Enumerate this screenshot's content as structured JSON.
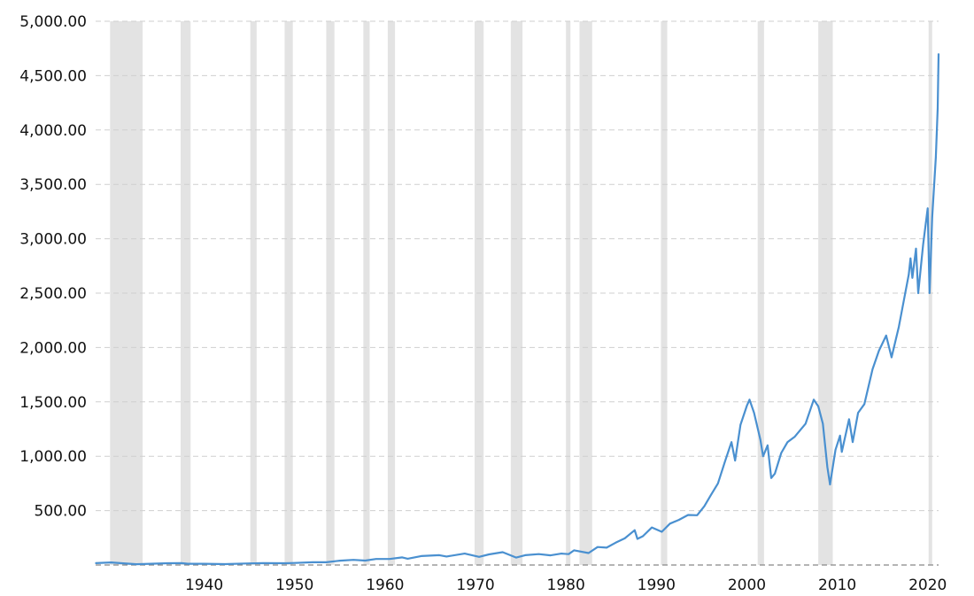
{
  "chart_data": {
    "type": "line",
    "title": "",
    "xlabel": "",
    "ylabel": "",
    "xlim": [
      1928,
      2021.2
    ],
    "ylim": [
      0,
      5000
    ],
    "grid": true,
    "y_ticks": [
      500,
      1000,
      1500,
      2000,
      2500,
      3000,
      3500,
      4000,
      4500,
      5000
    ],
    "y_tick_labels": [
      "500.00",
      "1,000.00",
      "1,500.00",
      "2,000.00",
      "2,500.00",
      "3,000.00",
      "3,500.00",
      "4,000.00",
      "4,500.00",
      "5,000.00"
    ],
    "x_ticks": [
      1940,
      1950,
      1960,
      1970,
      1980,
      1990,
      2000,
      2010,
      2020
    ],
    "x_tick_labels": [
      "1940",
      "1950",
      "1960",
      "1970",
      "1980",
      "1990",
      "2000",
      "2010",
      "2020"
    ],
    "line_color": "#4a90d0",
    "recession_color": "#e3e3e3",
    "recession_periods": [
      [
        1929.6,
        1933.2
      ],
      [
        1937.4,
        1938.5
      ],
      [
        1945.1,
        1945.8
      ],
      [
        1948.9,
        1949.8
      ],
      [
        1953.5,
        1954.4
      ],
      [
        1957.6,
        1958.3
      ],
      [
        1960.3,
        1961.1
      ],
      [
        1969.9,
        1970.9
      ],
      [
        1973.9,
        1975.2
      ],
      [
        1980.0,
        1980.5
      ],
      [
        1981.5,
        1982.9
      ],
      [
        1990.5,
        1991.2
      ],
      [
        2001.2,
        2001.9
      ],
      [
        2007.9,
        2009.5
      ],
      [
        2020.1,
        2020.4
      ]
    ],
    "series": [
      {
        "name": "",
        "points": [
          [
            1928.0,
            17
          ],
          [
            1929.7,
            24
          ],
          [
            1932.5,
            7
          ],
          [
            1936.0,
            16
          ],
          [
            1937.5,
            17
          ],
          [
            1938.2,
            11
          ],
          [
            1940.0,
            11
          ],
          [
            1942.3,
            8
          ],
          [
            1945.0,
            15
          ],
          [
            1946.5,
            17
          ],
          [
            1949.0,
            16
          ],
          [
            1950.0,
            19
          ],
          [
            1952.0,
            25
          ],
          [
            1953.5,
            25
          ],
          [
            1955.0,
            40
          ],
          [
            1956.5,
            47
          ],
          [
            1957.8,
            41
          ],
          [
            1959.0,
            55
          ],
          [
            1960.5,
            55
          ],
          [
            1961.9,
            70
          ],
          [
            1962.5,
            58
          ],
          [
            1964.0,
            82
          ],
          [
            1966.0,
            90
          ],
          [
            1966.8,
            78
          ],
          [
            1968.8,
            105
          ],
          [
            1970.4,
            75
          ],
          [
            1971.5,
            98
          ],
          [
            1973.0,
            118
          ],
          [
            1974.5,
            68
          ],
          [
            1975.5,
            90
          ],
          [
            1977.0,
            100
          ],
          [
            1978.3,
            89
          ],
          [
            1979.5,
            105
          ],
          [
            1980.3,
            100
          ],
          [
            1980.9,
            135
          ],
          [
            1982.5,
            110
          ],
          [
            1983.5,
            165
          ],
          [
            1984.5,
            160
          ],
          [
            1985.5,
            205
          ],
          [
            1986.5,
            245
          ],
          [
            1987.6,
            320
          ],
          [
            1987.9,
            240
          ],
          [
            1988.5,
            265
          ],
          [
            1989.5,
            345
          ],
          [
            1990.6,
            305
          ],
          [
            1991.5,
            380
          ],
          [
            1992.5,
            415
          ],
          [
            1993.5,
            460
          ],
          [
            1994.5,
            458
          ],
          [
            1995.3,
            540
          ],
          [
            1996.0,
            640
          ],
          [
            1996.8,
            750
          ],
          [
            1997.6,
            955
          ],
          [
            1998.3,
            1130
          ],
          [
            1998.7,
            960
          ],
          [
            1999.3,
            1290
          ],
          [
            2000.0,
            1465
          ],
          [
            2000.3,
            1520
          ],
          [
            2000.8,
            1400
          ],
          [
            2001.5,
            1150
          ],
          [
            2001.8,
            1000
          ],
          [
            2002.3,
            1100
          ],
          [
            2002.7,
            800
          ],
          [
            2003.1,
            840
          ],
          [
            2003.8,
            1030
          ],
          [
            2004.5,
            1130
          ],
          [
            2005.3,
            1180
          ],
          [
            2006.5,
            1300
          ],
          [
            2007.4,
            1520
          ],
          [
            2007.9,
            1460
          ],
          [
            2008.4,
            1300
          ],
          [
            2008.9,
            900
          ],
          [
            2009.2,
            740
          ],
          [
            2009.8,
            1060
          ],
          [
            2010.3,
            1190
          ],
          [
            2010.5,
            1040
          ],
          [
            2011.3,
            1340
          ],
          [
            2011.7,
            1130
          ],
          [
            2012.3,
            1400
          ],
          [
            2013.0,
            1480
          ],
          [
            2013.9,
            1800
          ],
          [
            2014.6,
            1970
          ],
          [
            2015.4,
            2110
          ],
          [
            2016.0,
            1910
          ],
          [
            2016.8,
            2190
          ],
          [
            2017.9,
            2670
          ],
          [
            2018.1,
            2820
          ],
          [
            2018.3,
            2640
          ],
          [
            2018.7,
            2910
          ],
          [
            2018.95,
            2500
          ],
          [
            2019.5,
            2950
          ],
          [
            2020.0,
            3280
          ],
          [
            2020.2,
            2500
          ],
          [
            2020.5,
            3200
          ],
          [
            2020.9,
            3750
          ],
          [
            2021.1,
            4200
          ],
          [
            2021.2,
            4700
          ]
        ]
      }
    ]
  }
}
